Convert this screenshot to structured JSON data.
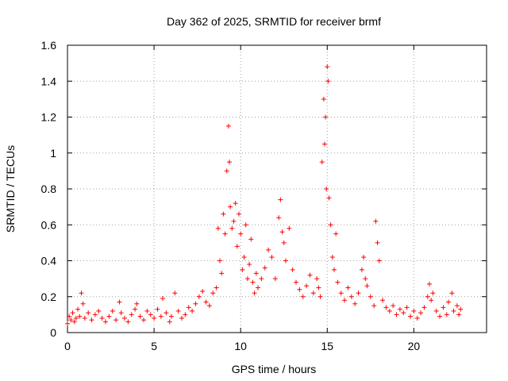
{
  "chart_data": {
    "type": "scatter",
    "title": "Day 362 of 2025, SRMTID for receiver brmf",
    "xlabel": "GPS time / hours",
    "ylabel": "SRMTID / TECUs",
    "xlim": [
      0,
      24.2
    ],
    "ylim": [
      0,
      1.6
    ],
    "xticks": [
      0,
      5,
      10,
      15,
      20
    ],
    "xtick_labels": [
      "0",
      "5",
      "10",
      "15",
      "20"
    ],
    "yticks": [
      0,
      0.2,
      0.4,
      0.6,
      0.8,
      1.0,
      1.2,
      1.4,
      1.6
    ],
    "ytick_labels": [
      "0",
      "0.2",
      "0.4",
      "0.6",
      "0.8",
      "1",
      "1.2",
      "1.4",
      "1.6"
    ],
    "grid": true,
    "marker": "+",
    "color": "#ff0000",
    "series": [
      {
        "name": "SRMTID",
        "points": [
          [
            0.0,
            0.05
          ],
          [
            0.1,
            0.09
          ],
          [
            0.2,
            0.07
          ],
          [
            0.3,
            0.11
          ],
          [
            0.4,
            0.06
          ],
          [
            0.5,
            0.08
          ],
          [
            0.6,
            0.13
          ],
          [
            0.7,
            0.09
          ],
          [
            0.8,
            0.22
          ],
          [
            0.9,
            0.16
          ],
          [
            1.0,
            0.08
          ],
          [
            1.2,
            0.11
          ],
          [
            1.4,
            0.07
          ],
          [
            1.6,
            0.1
          ],
          [
            1.8,
            0.12
          ],
          [
            2.0,
            0.08
          ],
          [
            2.2,
            0.06
          ],
          [
            2.4,
            0.09
          ],
          [
            2.6,
            0.12
          ],
          [
            2.8,
            0.07
          ],
          [
            3.0,
            0.17
          ],
          [
            3.1,
            0.11
          ],
          [
            3.3,
            0.08
          ],
          [
            3.5,
            0.06
          ],
          [
            3.7,
            0.1
          ],
          [
            3.9,
            0.13
          ],
          [
            4.0,
            0.16
          ],
          [
            4.2,
            0.09
          ],
          [
            4.4,
            0.07
          ],
          [
            4.6,
            0.12
          ],
          [
            4.8,
            0.1
          ],
          [
            5.0,
            0.08
          ],
          [
            5.2,
            0.13
          ],
          [
            5.4,
            0.09
          ],
          [
            5.5,
            0.19
          ],
          [
            5.7,
            0.11
          ],
          [
            5.9,
            0.06
          ],
          [
            6.0,
            0.09
          ],
          [
            6.2,
            0.22
          ],
          [
            6.4,
            0.12
          ],
          [
            6.6,
            0.08
          ],
          [
            6.8,
            0.1
          ],
          [
            7.0,
            0.14
          ],
          [
            7.2,
            0.12
          ],
          [
            7.4,
            0.16
          ],
          [
            7.6,
            0.2
          ],
          [
            7.8,
            0.23
          ],
          [
            8.0,
            0.17
          ],
          [
            8.2,
            0.15
          ],
          [
            8.4,
            0.22
          ],
          [
            8.6,
            0.25
          ],
          [
            8.7,
            0.58
          ],
          [
            8.8,
            0.4
          ],
          [
            8.9,
            0.33
          ],
          [
            9.0,
            0.66
          ],
          [
            9.1,
            0.55
          ],
          [
            9.2,
            0.9
          ],
          [
            9.3,
            1.15
          ],
          [
            9.35,
            0.95
          ],
          [
            9.4,
            0.7
          ],
          [
            9.5,
            0.58
          ],
          [
            9.6,
            0.62
          ],
          [
            9.7,
            0.72
          ],
          [
            9.8,
            0.48
          ],
          [
            9.9,
            0.66
          ],
          [
            10.0,
            0.55
          ],
          [
            10.1,
            0.35
          ],
          [
            10.2,
            0.42
          ],
          [
            10.3,
            0.6
          ],
          [
            10.4,
            0.3
          ],
          [
            10.5,
            0.38
          ],
          [
            10.6,
            0.52
          ],
          [
            10.7,
            0.28
          ],
          [
            10.8,
            0.22
          ],
          [
            10.9,
            0.33
          ],
          [
            11.0,
            0.25
          ],
          [
            11.2,
            0.3
          ],
          [
            11.4,
            0.36
          ],
          [
            11.6,
            0.46
          ],
          [
            11.8,
            0.42
          ],
          [
            12.0,
            0.3
          ],
          [
            12.2,
            0.64
          ],
          [
            12.3,
            0.74
          ],
          [
            12.4,
            0.56
          ],
          [
            12.5,
            0.5
          ],
          [
            12.6,
            0.4
          ],
          [
            12.8,
            0.58
          ],
          [
            13.0,
            0.35
          ],
          [
            13.2,
            0.28
          ],
          [
            13.4,
            0.24
          ],
          [
            13.6,
            0.2
          ],
          [
            13.8,
            0.26
          ],
          [
            14.0,
            0.32
          ],
          [
            14.2,
            0.22
          ],
          [
            14.4,
            0.3
          ],
          [
            14.5,
            0.25
          ],
          [
            14.6,
            0.2
          ],
          [
            14.7,
            0.95
          ],
          [
            14.8,
            1.3
          ],
          [
            14.85,
            1.05
          ],
          [
            14.9,
            1.2
          ],
          [
            14.95,
            0.8
          ],
          [
            15.0,
            1.48
          ],
          [
            15.05,
            1.4
          ],
          [
            15.1,
            0.75
          ],
          [
            15.2,
            0.6
          ],
          [
            15.3,
            0.42
          ],
          [
            15.4,
            0.35
          ],
          [
            15.5,
            0.55
          ],
          [
            15.6,
            0.28
          ],
          [
            15.8,
            0.22
          ],
          [
            16.0,
            0.18
          ],
          [
            16.2,
            0.25
          ],
          [
            16.4,
            0.2
          ],
          [
            16.6,
            0.16
          ],
          [
            16.8,
            0.22
          ],
          [
            17.0,
            0.35
          ],
          [
            17.1,
            0.42
          ],
          [
            17.2,
            0.3
          ],
          [
            17.3,
            0.26
          ],
          [
            17.5,
            0.2
          ],
          [
            17.7,
            0.15
          ],
          [
            17.8,
            0.62
          ],
          [
            17.9,
            0.5
          ],
          [
            18.0,
            0.4
          ],
          [
            18.2,
            0.18
          ],
          [
            18.4,
            0.14
          ],
          [
            18.6,
            0.12
          ],
          [
            18.8,
            0.15
          ],
          [
            19.0,
            0.1
          ],
          [
            19.2,
            0.13
          ],
          [
            19.4,
            0.11
          ],
          [
            19.6,
            0.14
          ],
          [
            19.8,
            0.09
          ],
          [
            20.0,
            0.12
          ],
          [
            20.2,
            0.08
          ],
          [
            20.4,
            0.11
          ],
          [
            20.6,
            0.14
          ],
          [
            20.8,
            0.2
          ],
          [
            20.9,
            0.27
          ],
          [
            21.0,
            0.18
          ],
          [
            21.1,
            0.22
          ],
          [
            21.3,
            0.12
          ],
          [
            21.5,
            0.09
          ],
          [
            21.7,
            0.14
          ],
          [
            21.9,
            0.1
          ],
          [
            22.0,
            0.17
          ],
          [
            22.2,
            0.22
          ],
          [
            22.3,
            0.12
          ],
          [
            22.5,
            0.15
          ],
          [
            22.6,
            0.1
          ],
          [
            22.7,
            0.13
          ]
        ]
      }
    ]
  }
}
